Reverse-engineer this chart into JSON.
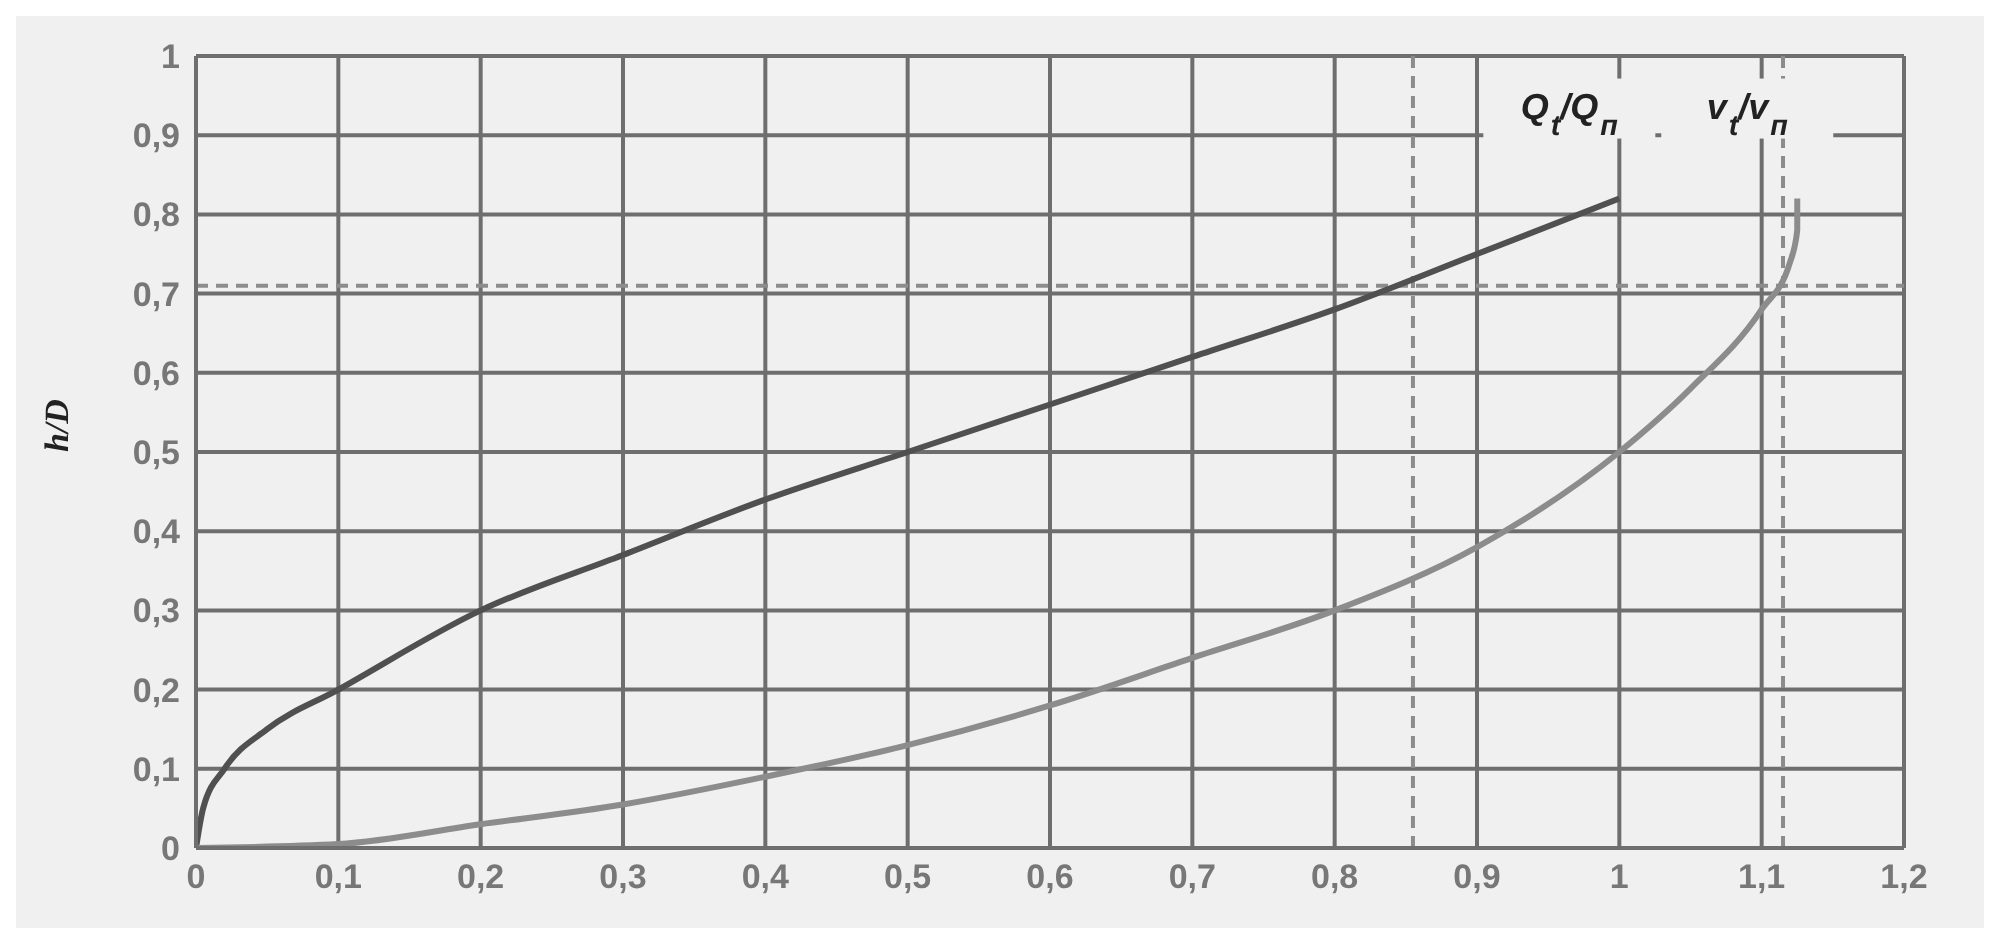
{
  "chart_data": {
    "type": "line",
    "ylabel": "h/D",
    "xlim": [
      0,
      1.2
    ],
    "xticks": [
      {
        "value": 0,
        "label": "0"
      },
      {
        "value": 0.1,
        "label": "0,1"
      },
      {
        "value": 0.2,
        "label": "0,2"
      },
      {
        "value": 0.3,
        "label": "0,3"
      },
      {
        "value": 0.4,
        "label": "0,4"
      },
      {
        "value": 0.5,
        "label": "0,5"
      },
      {
        "value": 0.6,
        "label": "0,6"
      },
      {
        "value": 0.7,
        "label": "0,7"
      },
      {
        "value": 0.8,
        "label": "0,8"
      },
      {
        "value": 0.9,
        "label": "0,9"
      },
      {
        "value": 1,
        "label": "1"
      },
      {
        "value": 1.1,
        "label": "1,1"
      },
      {
        "value": 1.2,
        "label": "1,2"
      }
    ],
    "ylim": [
      0,
      1
    ],
    "yticks": [
      {
        "value": 0,
        "label": "0"
      },
      {
        "value": 0.1,
        "label": "0,1"
      },
      {
        "value": 0.2,
        "label": "0,2"
      },
      {
        "value": 0.3,
        "label": "0,3"
      },
      {
        "value": 0.4,
        "label": "0,4"
      },
      {
        "value": 0.5,
        "label": "0,5"
      },
      {
        "value": 0.6,
        "label": "0,6"
      },
      {
        "value": 0.7,
        "label": "0,7"
      },
      {
        "value": 0.8,
        "label": "0,8"
      },
      {
        "value": 0.9,
        "label": "0,9"
      },
      {
        "value": 1,
        "label": "1"
      }
    ],
    "grid": true,
    "marker": "none",
    "line_style": "solid",
    "series": [
      {
        "name": "Q$_{t}$/Q$_{п}$",
        "color": "#505050",
        "x": [
          0,
          0.005,
          0.02,
          0.05,
          0.1,
          0.2,
          0.3,
          0.4,
          0.5,
          0.6,
          0.7,
          0.8,
          0.9,
          1
        ],
        "values": [
          0,
          0.05,
          0.1,
          0.15,
          0.2,
          0.3,
          0.37,
          0.44,
          0.5,
          0.56,
          0.62,
          0.68,
          0.75,
          0.82
        ]
      },
      {
        "name": "v$_{t}$/v$_{п}$",
        "color": "#8c8c8c",
        "x": [
          0,
          0.1,
          0.2,
          0.3,
          0.4,
          0.5,
          0.6,
          0.7,
          0.8,
          0.9,
          1,
          1.05,
          1.1,
          1.12,
          1.125,
          1.125
        ],
        "values": [
          0,
          0.005,
          0.03,
          0.055,
          0.09,
          0.13,
          0.18,
          0.24,
          0.3,
          0.38,
          0.5,
          0.58,
          0.68,
          0.74,
          0.78,
          0.82
        ]
      }
    ],
    "ref_lines": [
      {
        "axis": "y",
        "value": 0.71,
        "color": "#8c8c8c",
        "line_style": "dashed"
      },
      {
        "axis": "x",
        "value": 0.855,
        "color": "#8c8c8c",
        "line_style": "dashed"
      },
      {
        "axis": "x",
        "value": 1.115,
        "color": "#8c8c8c",
        "line_style": "dashed"
      }
    ]
  }
}
